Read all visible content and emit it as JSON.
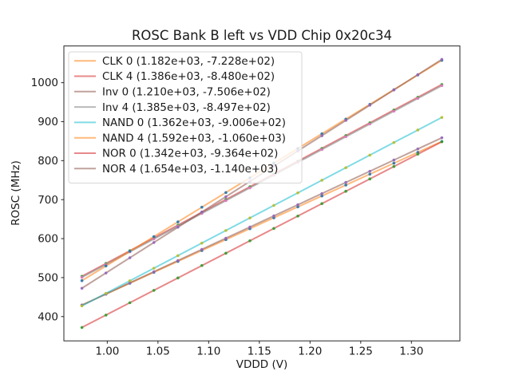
{
  "figure": {
    "background": "#ffffff",
    "axis_color": "#262626",
    "legend_border_color": "#d5d5d5",
    "legend_fill": "rgba(255,255,255,0.8)"
  },
  "chart_data": {
    "type": "scatter",
    "title": "ROSC Bank B left vs VDD Chip 0x20c34",
    "xlabel": "VDDD (V)",
    "ylabel": "ROSC (MHz)",
    "xlim": [
      0.9572,
      1.3478
    ],
    "ylim": [
      337.7,
      1094.2
    ],
    "x_ticks": [
      1.0,
      1.05,
      1.1,
      1.15,
      1.2,
      1.25,
      1.3
    ],
    "y_ticks": [
      400,
      500,
      600,
      700,
      800,
      900,
      1000
    ],
    "grid": false,
    "legend_position": "upper left",
    "line_alpha": 0.55,
    "marker_alpha": 0.9,
    "x": [
      0.975,
      0.9987,
      1.0223,
      1.046,
      1.0697,
      1.0933,
      1.117,
      1.1407,
      1.1643,
      1.188,
      1.2117,
      1.2353,
      1.259,
      1.2827,
      1.3063,
      1.33
    ],
    "series": [
      {
        "name": "CLK 0",
        "label": "CLK 0 (1.182e+03, -7.228e+02)",
        "fit_slope": 1182.0,
        "fit_intercept": -722.8,
        "line_color": "#ff7f0e",
        "marker_color": "#1f77b4",
        "values": [
          429.7,
          457.6,
          485.6,
          513.6,
          541.5,
          569.5,
          597.5,
          625.5,
          653.4,
          681.4,
          709.4,
          737.3,
          765.3,
          793.3,
          821.3,
          849.3
        ]
      },
      {
        "name": "CLK 4",
        "label": "CLK 4 (1.386e+03, -8.480e+02)",
        "fit_slope": 1386.0,
        "fit_intercept": -848.0,
        "line_color": "#d62728",
        "marker_color": "#2ca02c",
        "values": [
          503.4,
          536.2,
          569.0,
          601.8,
          634.6,
          667.4,
          700.2,
          733.0,
          765.8,
          798.6,
          831.4,
          864.2,
          897.0,
          929.8,
          962.6,
          995.4
        ]
      },
      {
        "name": "Inv 0",
        "label": "Inv 0 (1.210e+03, -7.506e+02)",
        "fit_slope": 1210.0,
        "fit_intercept": -750.6,
        "line_color": "#8c564b",
        "marker_color": "#9467bd",
        "values": [
          429.2,
          457.8,
          486.4,
          515.1,
          543.7,
          572.3,
          601.0,
          629.6,
          658.3,
          686.9,
          715.5,
          744.2,
          772.8,
          801.5,
          830.1,
          858.7
        ]
      },
      {
        "name": "Inv 4",
        "label": "Inv 4 (1.385e+03, -8.497e+02)",
        "fit_slope": 1385.0,
        "fit_intercept": -849.7,
        "line_color": "#7f7f7f",
        "marker_color": "#e377c2",
        "values": [
          500.7,
          533.5,
          566.2,
          599.0,
          631.8,
          664.6,
          697.4,
          730.1,
          762.9,
          795.7,
          828.5,
          861.3,
          894.0,
          926.8,
          959.6,
          992.4
        ]
      },
      {
        "name": "NAND 0",
        "label": "NAND 0 (1.362e+03, -9.006e+02)",
        "fit_slope": 1362.0,
        "fit_intercept": -900.6,
        "line_color": "#17becf",
        "marker_color": "#bcbd22",
        "values": [
          427.4,
          459.6,
          491.8,
          524.1,
          556.3,
          588.5,
          620.8,
          653.0,
          685.2,
          717.5,
          749.7,
          781.9,
          814.2,
          846.4,
          878.6,
          910.9
        ]
      },
      {
        "name": "NAND 4",
        "label": "NAND 4 (1.592e+03, -1.060e+03)",
        "fit_slope": 1592.0,
        "fit_intercept": -1060.0,
        "line_color": "#ff7f0e",
        "marker_color": "#1f77b4",
        "values": [
          492.2,
          529.9,
          567.6,
          605.2,
          642.9,
          680.6,
          718.3,
          755.9,
          793.6,
          831.3,
          869.0,
          906.6,
          944.3,
          982.0,
          1019.7,
          1057.4
        ]
      },
      {
        "name": "NOR 0",
        "label": "NOR 0 (1.342e+03, -9.364e+02)",
        "fit_slope": 1342.0,
        "fit_intercept": -936.4,
        "line_color": "#d62728",
        "marker_color": "#2ca02c",
        "values": [
          372.1,
          403.8,
          435.6,
          467.3,
          499.1,
          530.9,
          562.6,
          594.4,
          626.1,
          657.9,
          689.7,
          721.4,
          753.2,
          784.9,
          816.7,
          848.5
        ]
      },
      {
        "name": "NOR 4",
        "label": "NOR 4 (1.654e+03, -1.140e+03)",
        "fit_slope": 1654.0,
        "fit_intercept": -1140.0,
        "line_color": "#8c564b",
        "marker_color": "#9467bd",
        "values": [
          472.7,
          511.8,
          550.9,
          590.1,
          629.2,
          668.3,
          707.5,
          746.6,
          785.8,
          824.9,
          864.0,
          903.2,
          942.3,
          981.4,
          1020.6,
          1059.8
        ]
      }
    ]
  }
}
